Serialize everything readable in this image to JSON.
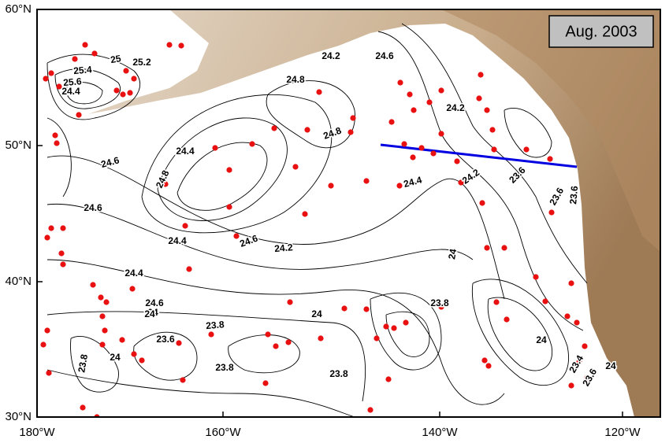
{
  "date_label": "Aug. 2003",
  "lat_labels": [
    "60°N",
    "50°N",
    "40°N",
    "30°N"
  ],
  "lon_labels": [
    "180°W",
    "160°W",
    "140°W",
    "120°W"
  ],
  "contour_labels": [
    "25",
    "25.2",
    "25.4",
    "25.6",
    "24.4",
    "24.2",
    "24.6",
    "24.8",
    "24.8",
    "24.6",
    "24.8",
    "24.4",
    "24.6",
    "24.4",
    "24.6",
    "24.4",
    "24.2",
    "24.6",
    "24.2",
    "24",
    "24",
    "24.4",
    "24.2",
    "24",
    "23.6",
    "23.6",
    "23.8",
    "23.8",
    "23.6",
    "24",
    "23.8",
    "24",
    "23.8",
    "23.8",
    "24",
    "23.4",
    "23.6",
    "23.6",
    "24"
  ]
}
